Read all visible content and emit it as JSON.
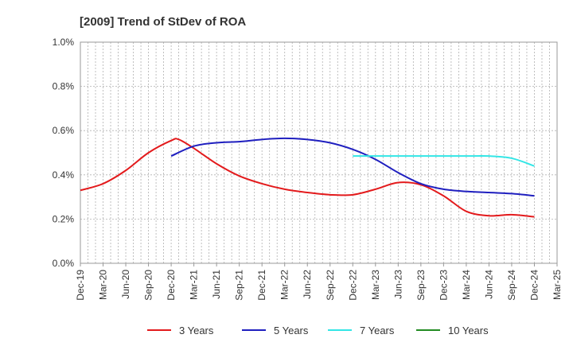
{
  "chart_data": {
    "type": "line",
    "title": "[2009]  Trend of StDev of ROA",
    "xlabel": "",
    "ylabel": "",
    "x_start": "Dec-19",
    "x_end": "Mar-25",
    "x_ticks": [
      "Dec-19",
      "Mar-20",
      "Jun-20",
      "Sep-20",
      "Dec-20",
      "Mar-21",
      "Jun-21",
      "Sep-21",
      "Dec-21",
      "Mar-22",
      "Jun-22",
      "Sep-22",
      "Dec-22",
      "Mar-23",
      "Jun-23",
      "Sep-23",
      "Dec-23",
      "Mar-24",
      "Jun-24",
      "Sep-24",
      "Dec-24",
      "Mar-25"
    ],
    "y_ticks": [
      "0.0%",
      "0.2%",
      "0.4%",
      "0.6%",
      "0.8%",
      "1.0%"
    ],
    "ylim": [
      0,
      1.0
    ],
    "y_unit": "%",
    "grid": true,
    "legend_position": "bottom",
    "series": [
      {
        "name": "3 Years",
        "color": "#e31a1c",
        "values": [
          [
            "Dec-19",
            0.33
          ],
          [
            "Mar-20",
            0.36
          ],
          [
            "Jun-20",
            0.42
          ],
          [
            "Sep-20",
            0.5
          ],
          [
            "Dec-20",
            0.555
          ],
          [
            "Jan-21",
            0.56
          ],
          [
            "Mar-21",
            0.52
          ],
          [
            "Jun-21",
            0.45
          ],
          [
            "Sep-21",
            0.395
          ],
          [
            "Dec-21",
            0.36
          ],
          [
            "Mar-22",
            0.335
          ],
          [
            "Jun-22",
            0.32
          ],
          [
            "Sep-22",
            0.31
          ],
          [
            "Dec-22",
            0.31
          ],
          [
            "Mar-23",
            0.335
          ],
          [
            "Jun-23",
            0.365
          ],
          [
            "Sep-23",
            0.355
          ],
          [
            "Dec-23",
            0.305
          ],
          [
            "Mar-24",
            0.235
          ],
          [
            "Jun-24",
            0.215
          ],
          [
            "Sep-24",
            0.22
          ],
          [
            "Dec-24",
            0.21
          ]
        ]
      },
      {
        "name": "5 Years",
        "color": "#1f1fbf",
        "values": [
          [
            "Dec-20",
            0.485
          ],
          [
            "Mar-21",
            0.53
          ],
          [
            "Jun-21",
            0.545
          ],
          [
            "Sep-21",
            0.55
          ],
          [
            "Dec-21",
            0.56
          ],
          [
            "Mar-22",
            0.565
          ],
          [
            "Jun-22",
            0.56
          ],
          [
            "Sep-22",
            0.545
          ],
          [
            "Dec-22",
            0.515
          ],
          [
            "Mar-23",
            0.47
          ],
          [
            "Jun-23",
            0.41
          ],
          [
            "Sep-23",
            0.36
          ],
          [
            "Dec-23",
            0.335
          ],
          [
            "Mar-24",
            0.325
          ],
          [
            "Jun-24",
            0.32
          ],
          [
            "Sep-24",
            0.315
          ],
          [
            "Dec-24",
            0.305
          ]
        ]
      },
      {
        "name": "7 Years",
        "color": "#33e6e6",
        "values": [
          [
            "Dec-22",
            0.485
          ],
          [
            "Mar-23",
            0.485
          ],
          [
            "Jun-23",
            0.485
          ],
          [
            "Sep-23",
            0.485
          ],
          [
            "Dec-23",
            0.485
          ],
          [
            "Mar-24",
            0.485
          ],
          [
            "Jun-24",
            0.485
          ],
          [
            "Sep-24",
            0.475
          ],
          [
            "Dec-24",
            0.44
          ]
        ]
      },
      {
        "name": "10 Years",
        "color": "#228b22",
        "values": []
      }
    ]
  }
}
